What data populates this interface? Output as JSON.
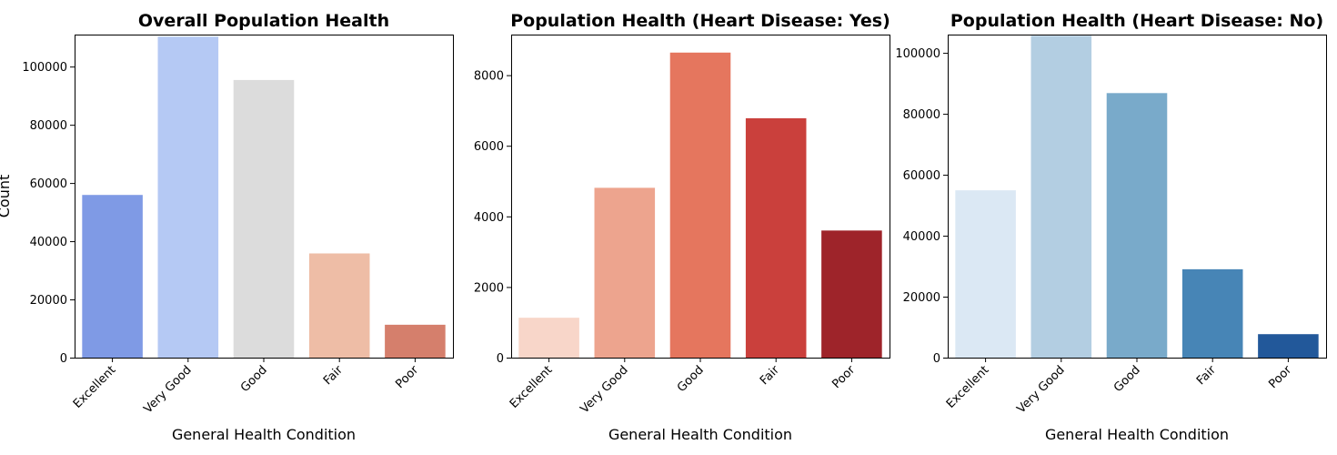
{
  "chart_data": [
    {
      "type": "bar",
      "title": "Overall Population Health",
      "xlabel": "General Health Condition",
      "ylabel": "Count",
      "categories": [
        "Excellent",
        "Very Good",
        "Good",
        "Fair",
        "Poor"
      ],
      "values": [
        55900,
        110300,
        95400,
        35800,
        11300
      ],
      "colors": [
        "#7f9ae5",
        "#b5c9f4",
        "#dcdcdc",
        "#eebda6",
        "#d57f6c"
      ],
      "ylim": [
        0,
        111000
      ],
      "yticks": [
        0,
        20000,
        40000,
        60000,
        80000,
        100000
      ],
      "grid": false
    },
    {
      "type": "bar",
      "title": "Population Health (Heart Disease: Yes)",
      "xlabel": "General Health Condition",
      "ylabel": "",
      "categories": [
        "Excellent",
        "Very Good",
        "Good",
        "Fair",
        "Poor"
      ],
      "values": [
        1130,
        4810,
        8640,
        6780,
        3600
      ],
      "colors": [
        "#f8d6c9",
        "#eda48e",
        "#e5765e",
        "#ca403c",
        "#9e242a"
      ],
      "ylim": [
        0,
        9150
      ],
      "yticks": [
        0,
        2000,
        4000,
        6000,
        8000
      ],
      "grid": false
    },
    {
      "type": "bar",
      "title": "Population Health (Heart Disease: No)",
      "xlabel": "General Health Condition",
      "ylabel": "",
      "categories": [
        "Excellent",
        "Very Good",
        "Good",
        "Fair",
        "Poor"
      ],
      "values": [
        54900,
        105600,
        86800,
        29000,
        7700
      ],
      "colors": [
        "#dbe8f4",
        "#b3cee2",
        "#79aaca",
        "#4785b6",
        "#22589a"
      ],
      "ylim": [
        0,
        106000
      ],
      "yticks": [
        0,
        20000,
        40000,
        60000,
        80000,
        100000
      ],
      "grid": false
    }
  ]
}
